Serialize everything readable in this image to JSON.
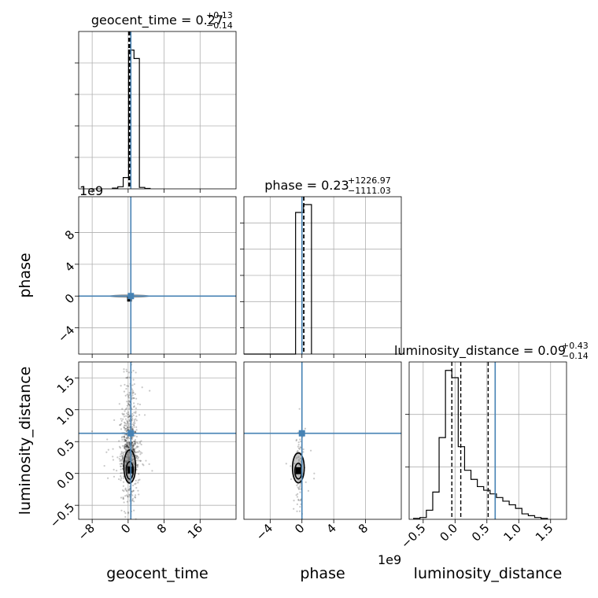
{
  "chart_data": {
    "type": "corner",
    "parameters": [
      "geocent_time",
      "phase",
      "luminosity_distance"
    ],
    "truth": {
      "geocent_time": 0.6,
      "phase": 0.0,
      "luminosity_distance": 0.63
    },
    "truth_color": "#4682b4",
    "offset_texts": {
      "geocent_time_y": "1e9",
      "phase_x": "1e9"
    },
    "titles": {
      "geocent_time": {
        "base": "geocent_time = 0.27",
        "plus": "+0.13",
        "minus": "−0.14"
      },
      "phase": {
        "base": "phase = 0.23",
        "plus": "+1226.97",
        "minus": "−1111.03"
      },
      "luminosity_distance": {
        "base": "luminosity_distance = 0.09",
        "plus": "+0.43",
        "minus": "−0.14"
      }
    },
    "xlabels": {
      "geocent_time": "geocent_time",
      "phase": "phase",
      "luminosity_distance": "luminosity_distance"
    },
    "ylabels": {
      "phase": "phase",
      "luminosity_distance": "luminosity_distance"
    },
    "ranges": {
      "geocent_time": [
        -11,
        24
      ],
      "phase": [
        -7.3,
        12.5
      ],
      "luminosity_distance": [
        -0.72,
        1.75
      ]
    },
    "ticks": {
      "geocent_time": {
        "values": [
          -8,
          0,
          8,
          16
        ],
        "labels": [
          "−8",
          "0",
          "8",
          "16"
        ]
      },
      "phase": {
        "values": [
          -4,
          0,
          4,
          8
        ],
        "labels": [
          "−4",
          "0",
          "4",
          "8"
        ]
      },
      "luminosity_distance": {
        "values": [
          -0.5,
          0.0,
          0.5,
          1.0,
          1.5
        ],
        "labels": [
          "−0.5",
          "0.0",
          "0.5",
          "1.0",
          "1.5"
        ]
      }
    },
    "quantiles": {
      "geocent_time": [
        0.13,
        0.27,
        0.4
      ],
      "phase": [
        0.23,
        0.23,
        0.23
      ],
      "luminosity_distance": [
        -0.05,
        0.09,
        0.52
      ]
    },
    "hist_geocent_time": {
      "edges": [
        -3.5,
        -2.3,
        -1.1,
        0.1,
        1.3,
        2.5,
        3.7,
        4.9
      ],
      "counts": [
        0.5,
        1.5,
        8,
        98,
        92,
        1,
        0.3
      ]
    },
    "hist_phase": {
      "edges": [
        -7.3,
        -0.8,
        0.2,
        1.2
      ],
      "counts": [
        0,
        90,
        95
      ]
    },
    "hist_luminosity_distance": {
      "edges": [
        -0.65,
        -0.55,
        -0.45,
        -0.35,
        -0.25,
        -0.15,
        -0.05,
        0.05,
        0.15,
        0.25,
        0.35,
        0.45,
        0.55,
        0.65,
        0.75,
        0.85,
        0.95,
        1.05,
        1.15,
        1.25,
        1.35,
        1.45
      ],
      "counts": [
        0.5,
        1,
        5,
        15,
        45,
        82,
        78,
        40,
        27,
        22,
        18,
        16,
        14,
        12,
        10,
        8,
        6,
        3,
        2,
        1,
        0.5
      ]
    },
    "grid": true
  }
}
